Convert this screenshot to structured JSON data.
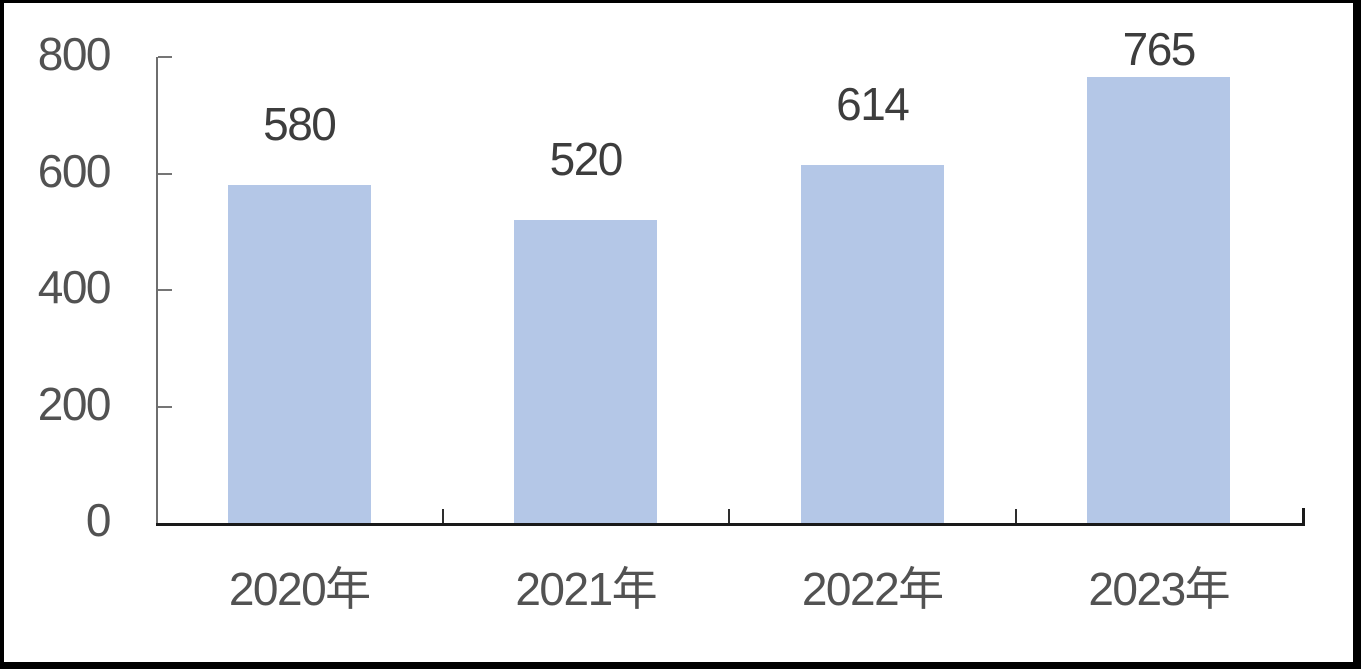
{
  "chart_data": {
    "type": "bar",
    "title": "",
    "xlabel": "",
    "ylabel": "",
    "categories": [
      "2020年",
      "2021年",
      "2022年",
      "2023年"
    ],
    "series": [
      {
        "name": "value",
        "values": [
          580,
          520,
          614,
          765
        ]
      }
    ],
    "data_labels": [
      "580",
      "520",
      "614",
      "765"
    ],
    "data_labels_position": "outside-end",
    "yticks": [
      0,
      200,
      400,
      600,
      800
    ],
    "ytick_labels": [
      "0",
      "200",
      "400",
      "600",
      "800"
    ],
    "ylim": [
      0,
      800
    ],
    "grid": false,
    "legend": "none",
    "colors": {
      "bar_fill": "#b4c7e7",
      "data_label_text": "#3d3d3d",
      "axis_tick_label_text": "#525252",
      "y_axis_line": "#6e6e6e",
      "x_axis_line": "#1a1a1a",
      "frame_border": "#000000",
      "background": "#ffffff"
    }
  }
}
